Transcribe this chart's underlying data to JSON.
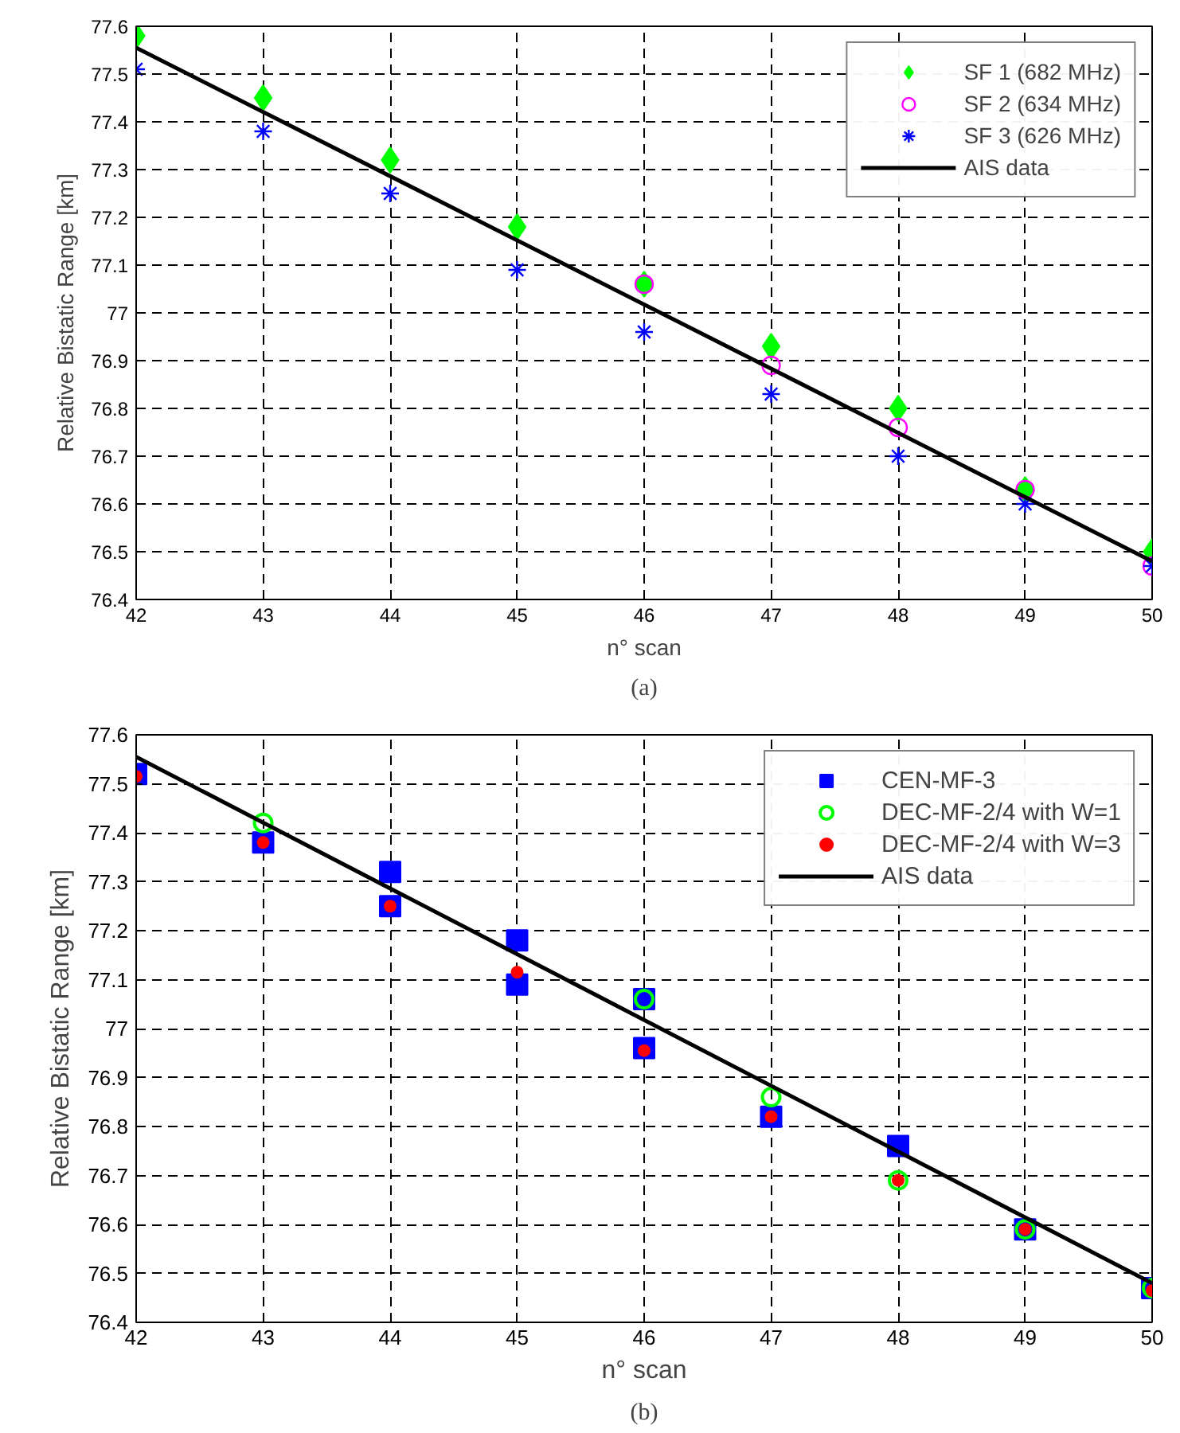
{
  "chart_data": [
    {
      "type": "scatter",
      "xlabel": "n° scan",
      "ylabel": "Relative Bistatic Range [km]",
      "annotations": [
        "(a)"
      ],
      "xlim": [
        42,
        50
      ],
      "ylim": [
        76.4,
        77.6
      ],
      "xticks": [
        42,
        43,
        44,
        45,
        46,
        47,
        48,
        49,
        50
      ],
      "yticks": [
        76.4,
        76.5,
        76.6,
        76.7,
        76.8,
        76.9,
        {
          "value": 77,
          "label": "77"
        },
        77.1,
        77.2,
        77.3,
        77.4,
        77.5,
        77.6
      ],
      "grid": true,
      "legend": "top right",
      "series": [
        {
          "name": "SF 1 (682 MHz)",
          "color": "#00ff00",
          "marker": "diamond",
          "x": [
            42,
            43,
            44,
            45,
            46,
            47,
            48,
            49,
            50
          ],
          "values": [
            77.58,
            77.45,
            77.32,
            77.18,
            77.06,
            76.93,
            76.8,
            76.63,
            76.5
          ]
        },
        {
          "name": "SF 2 (634 MHz)",
          "color": "#ff00ff",
          "marker": "circle_open",
          "x": [
            46,
            47,
            48,
            49,
            50
          ],
          "values": [
            77.06,
            76.89,
            76.76,
            76.63,
            76.47
          ]
        },
        {
          "name": "SF 3 (626 MHz)",
          "color": "#0000ff",
          "marker": "cross",
          "x": [
            42,
            43,
            44,
            45,
            46,
            47,
            48,
            49,
            50
          ],
          "values": [
            77.51,
            77.38,
            77.25,
            77.09,
            76.96,
            76.83,
            76.7,
            76.6,
            76.47
          ]
        },
        {
          "name": "AIS data",
          "color": "#000000",
          "type": "line",
          "marker": "none",
          "x": [
            42,
            50
          ],
          "values": [
            77.555,
            76.48
          ]
        }
      ]
    },
    {
      "type": "scatter",
      "xlabel": "n° scan",
      "ylabel": "Relative Bistatic Range [km]",
      "annotations": [
        "(b)"
      ],
      "xlim": [
        42,
        50
      ],
      "ylim": [
        76.4,
        77.6
      ],
      "xticks": [
        42,
        43,
        44,
        45,
        46,
        47,
        48,
        49,
        50
      ],
      "yticks": [
        76.4,
        76.5,
        76.6,
        76.7,
        76.8,
        76.9,
        {
          "value": 77,
          "label": "77"
        },
        77.1,
        77.2,
        77.3,
        77.4,
        77.5,
        77.6
      ],
      "grid": true,
      "legend": "top right",
      "series": [
        {
          "name": "CEN-MF-3",
          "color": "#0000ff",
          "marker": "square",
          "x": [
            42,
            43,
            44,
            44,
            45,
            45,
            46,
            46,
            47,
            48,
            49,
            50
          ],
          "values": [
            77.52,
            77.38,
            77.32,
            77.25,
            77.18,
            77.09,
            77.06,
            76.96,
            76.82,
            76.76,
            76.59,
            76.47
          ]
        },
        {
          "name": "DEC-MF-2/4 with W=1",
          "color": "#00ff00",
          "marker": "circle_open",
          "x": [
            43,
            46,
            47,
            48,
            49,
            50
          ],
          "values": [
            77.42,
            77.06,
            76.86,
            76.69,
            76.59,
            76.47
          ]
        },
        {
          "name": "DEC-MF-2/4 with W=3",
          "color": "#ff0000",
          "marker": "circle",
          "x": [
            42,
            43,
            44,
            45,
            46,
            47,
            48,
            49,
            50
          ],
          "values": [
            77.515,
            77.38,
            77.25,
            77.115,
            76.955,
            76.82,
            76.69,
            76.59,
            76.465
          ]
        },
        {
          "name": "AIS data",
          "color": "#000000",
          "type": "line",
          "marker": "none",
          "x": [
            42,
            50
          ],
          "values": [
            77.555,
            76.48
          ]
        }
      ]
    }
  ]
}
